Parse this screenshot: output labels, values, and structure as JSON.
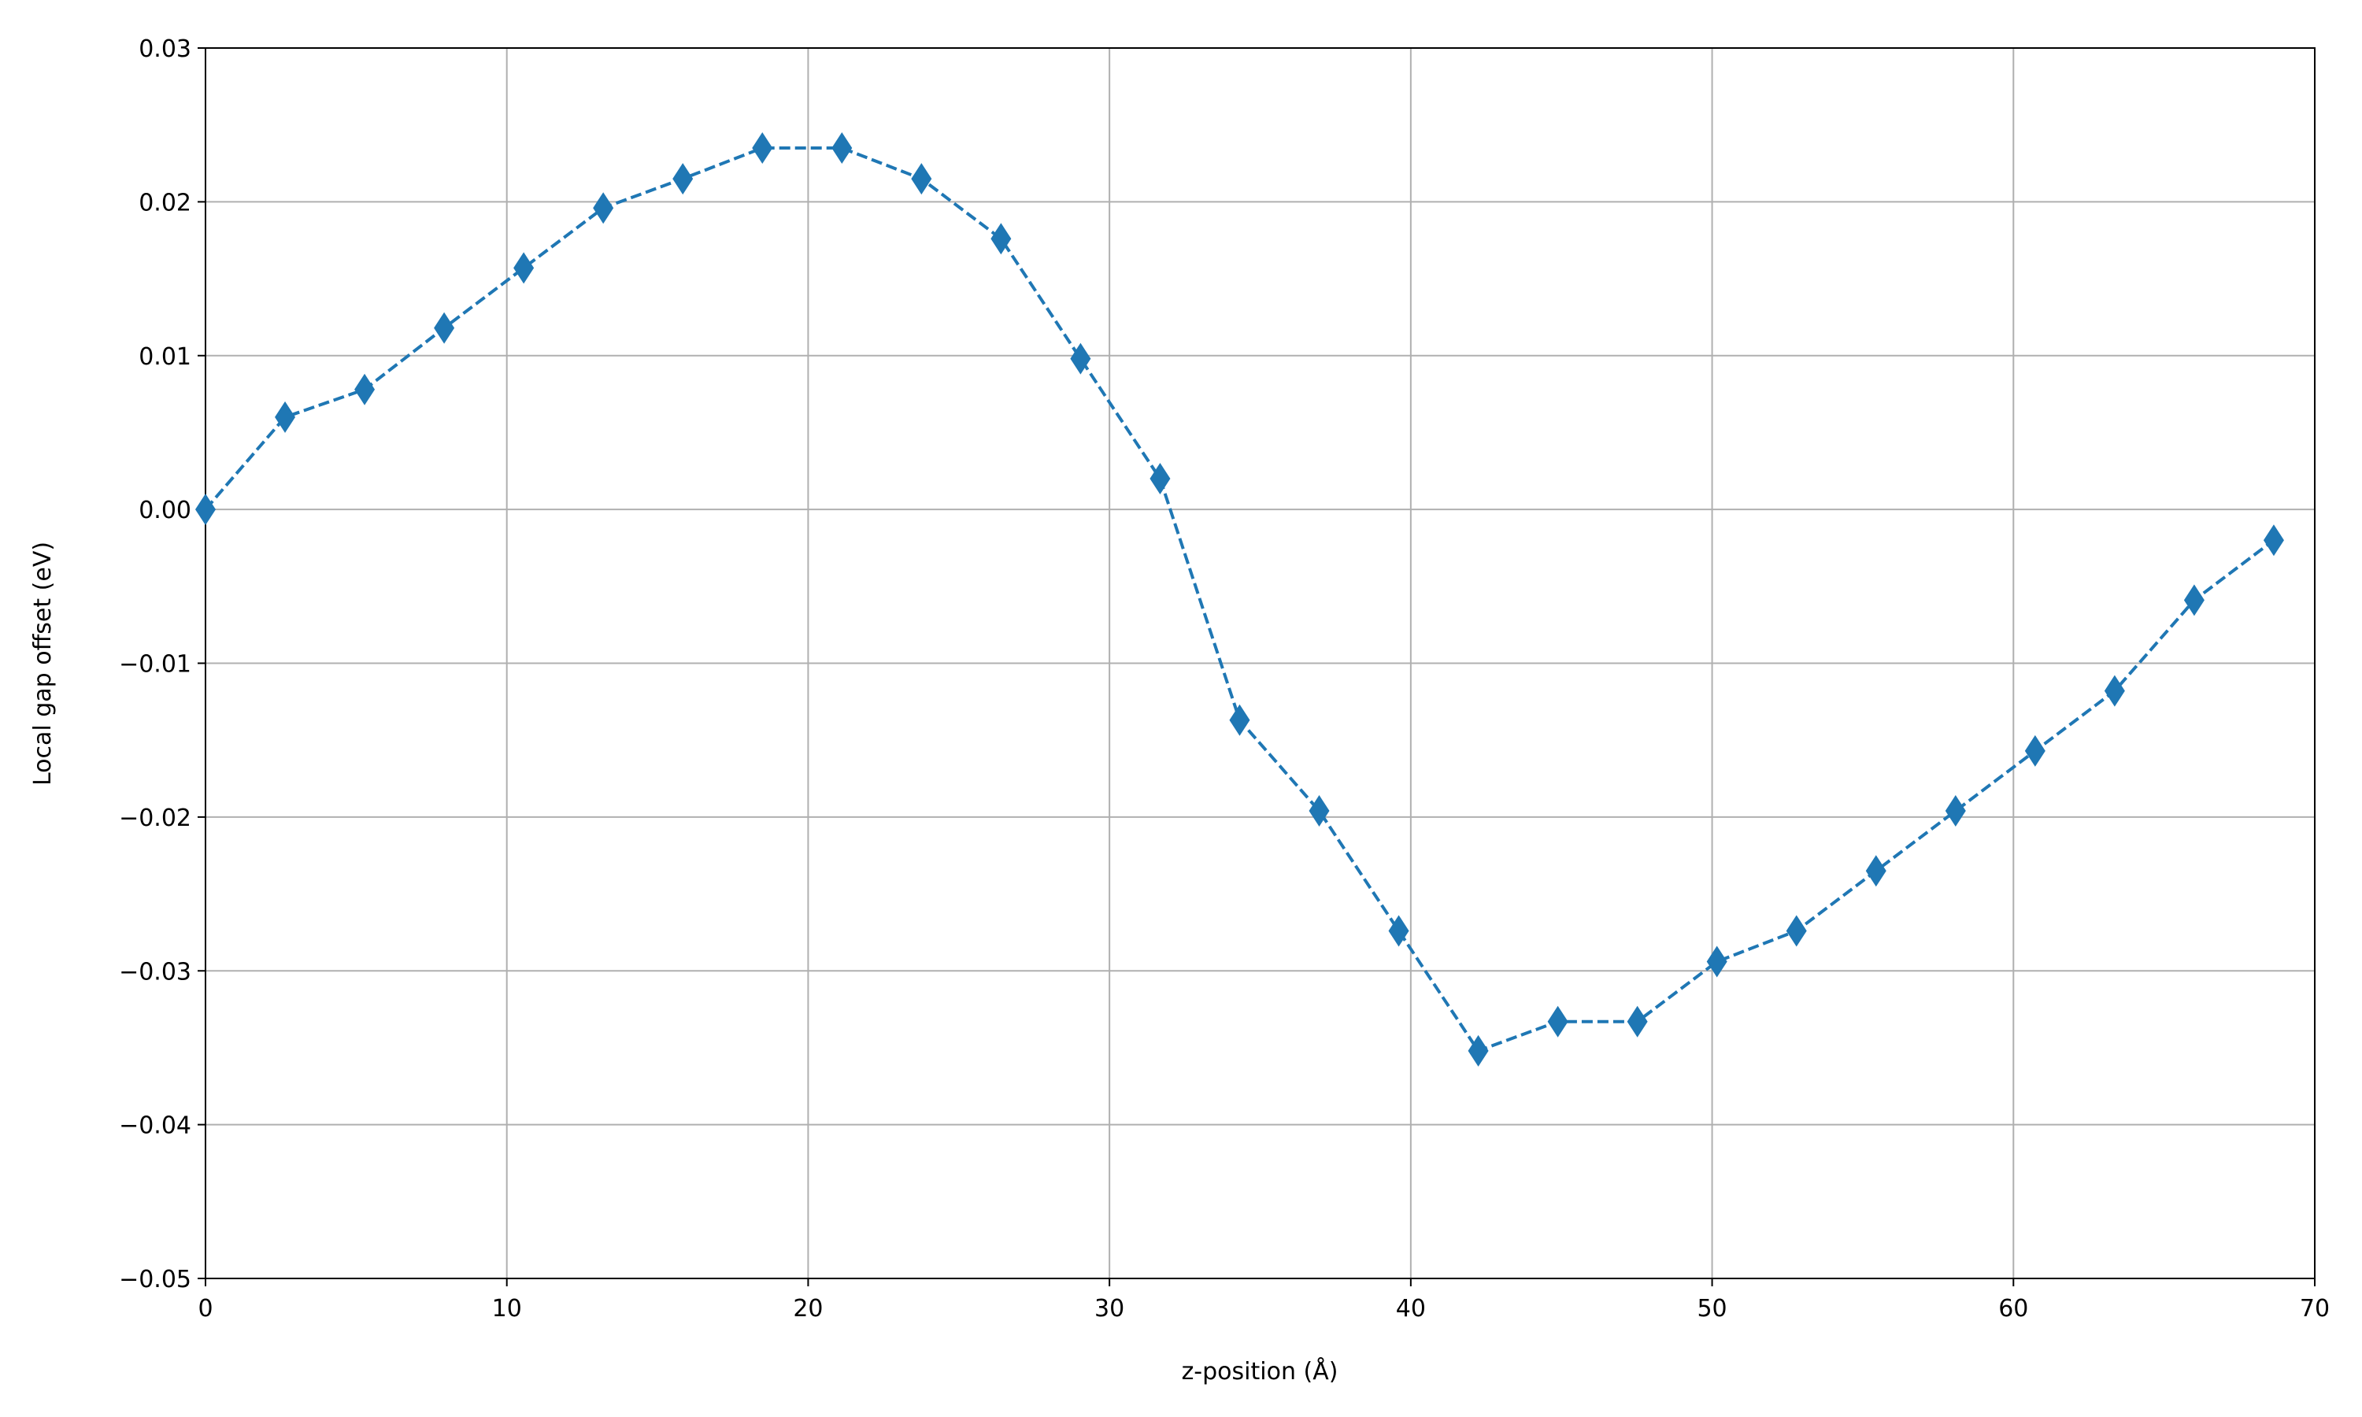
{
  "chart_data": {
    "type": "line",
    "x_label": "z-position (Å)",
    "y_label": "Local gap offset (eV)",
    "x": [
      0,
      2.64,
      5.28,
      7.92,
      10.56,
      13.2,
      15.84,
      18.48,
      21.12,
      23.76,
      26.4,
      29.04,
      31.68,
      34.32,
      36.96,
      39.6,
      42.24,
      44.88,
      47.52,
      50.16,
      52.8,
      55.44,
      58.08,
      60.72,
      63.36,
      66.0,
      68.64
    ],
    "series": [
      {
        "color": "#1f77b4",
        "marker": "diamond",
        "linestyle": "dashed",
        "values": [
          0,
          0.006,
          0.0078,
          0.0118,
          0.0157,
          0.0196,
          0.0215,
          0.0235,
          0.0235,
          0.0215,
          0.0176,
          0.0098,
          0.002,
          -0.0137,
          -0.0196,
          -0.0274,
          -0.0352,
          -0.0333,
          -0.0333,
          -0.0294,
          -0.0274,
          -0.0235,
          -0.0196,
          -0.0157,
          -0.0118,
          -0.0059,
          -0.002
        ]
      }
    ],
    "xlim": [
      0,
      70
    ],
    "xticks": [
      0,
      10,
      20,
      30,
      40,
      50,
      60,
      70
    ],
    "ylim": [
      -0.05,
      0.03
    ],
    "yticks": [
      {
        "value": -0.05,
        "label": "−0.05"
      },
      {
        "value": -0.04,
        "label": "−0.04"
      },
      {
        "value": -0.03,
        "label": "−0.03"
      },
      {
        "value": -0.02,
        "label": "−0.02"
      },
      {
        "value": -0.01,
        "label": "−0.01"
      },
      {
        "value": 0,
        "label": "0.00"
      },
      0.01,
      0.02,
      0.03
    ],
    "grid": true
  }
}
